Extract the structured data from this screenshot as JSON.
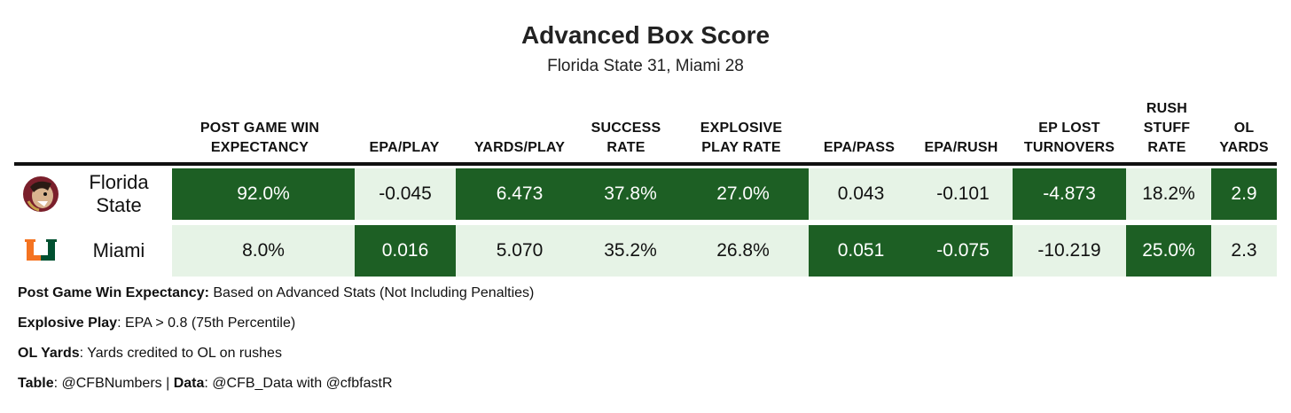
{
  "title": "Advanced Box Score",
  "subtitle": "Florida State 31, Miami 28",
  "columns": [
    {
      "line1": "POST GAME WIN",
      "line2": "EXPECTANCY",
      "line3": ""
    },
    {
      "line1": "EPA/PLAY",
      "line2": "",
      "line3": ""
    },
    {
      "line1": "YARDS/PLAY",
      "line2": "",
      "line3": ""
    },
    {
      "line1": "SUCCESS",
      "line2": "RATE",
      "line3": ""
    },
    {
      "line1": "EXPLOSIVE",
      "line2": "PLAY RATE",
      "line3": ""
    },
    {
      "line1": "EPA/PASS",
      "line2": "",
      "line3": ""
    },
    {
      "line1": "EPA/RUSH",
      "line2": "",
      "line3": ""
    },
    {
      "line1": "EP LOST",
      "line2": "TURNOVERS",
      "line3": ""
    },
    {
      "line1": "RUSH",
      "line2": "STUFF",
      "line3": "RATE"
    },
    {
      "line1": "OL",
      "line2": "YARDS",
      "line3": ""
    }
  ],
  "rows": [
    {
      "team_line1": "Florida",
      "team_line2": "State",
      "logo": "seminole-head-icon",
      "values": [
        "92.0%",
        "-0.045",
        "6.473",
        "37.8%",
        "27.0%",
        "0.043",
        "-0.101",
        "-4.873",
        "18.2%",
        "2.9"
      ],
      "winner": [
        true,
        false,
        true,
        true,
        true,
        false,
        false,
        true,
        false,
        true
      ]
    },
    {
      "team_line1": "Miami",
      "team_line2": "",
      "logo": "u-logo-icon",
      "values": [
        "8.0%",
        "0.016",
        "5.070",
        "35.2%",
        "26.8%",
        "0.051",
        "-0.075",
        "-10.219",
        "25.0%",
        "2.3"
      ],
      "winner": [
        false,
        true,
        false,
        false,
        false,
        true,
        true,
        false,
        true,
        false
      ]
    }
  ],
  "colors": {
    "winner_fill": "#1d5f24",
    "loser_fill": "#e6f3e6",
    "fsu_garnet": "#7a1f2b",
    "um_orange": "#f47321",
    "um_green": "#005030"
  },
  "notes": [
    {
      "label": "Post Game Win Expectancy:",
      "text": " Based on Advanced Stats (Not Including Penalties)"
    },
    {
      "label": "Explosive Play",
      "text": ": EPA > 0.8 (75th Percentile)"
    },
    {
      "label": "OL Yards",
      "text": ": Yards credited to OL on rushes"
    },
    {
      "label": "Table",
      "text": ": @CFBNumbers | ",
      "label2": "Data",
      "text2": ": @CFB_Data with @cfbfastR"
    }
  ]
}
